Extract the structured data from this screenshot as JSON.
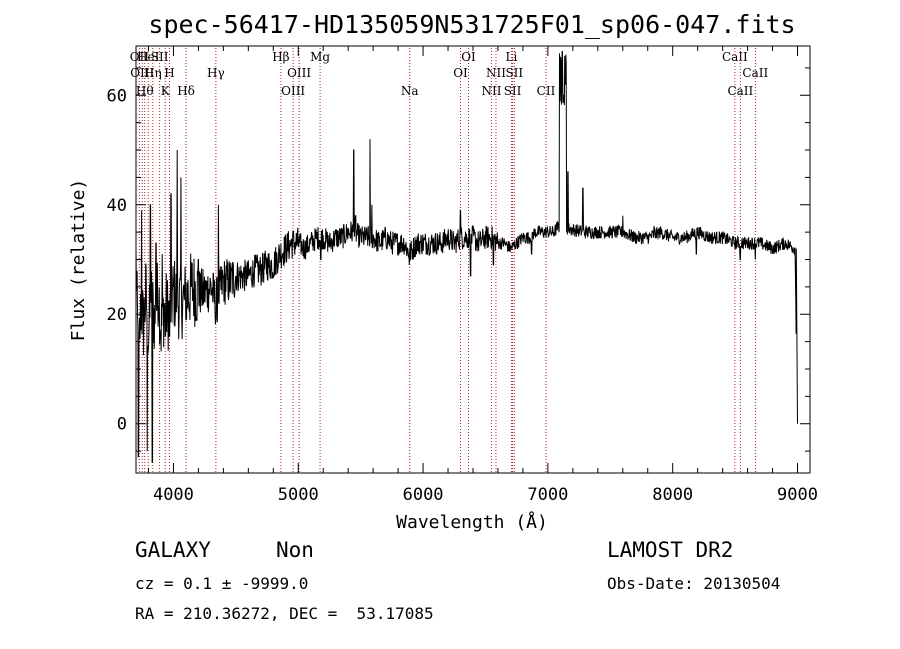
{
  "chart_data": {
    "type": "line",
    "title": "spec-56417-HD135059N531725F01_sp06-047.fits",
    "xlabel": "Wavelength (Å)",
    "ylabel": "Flux (relative)",
    "xlim": [
      3700,
      9100
    ],
    "ylim": [
      -9,
      69
    ],
    "xticks": [
      4000,
      5000,
      6000,
      7000,
      8000,
      9000
    ],
    "yticks": [
      0,
      20,
      40,
      60
    ],
    "grid": false,
    "spectrum_anchors": [
      [
        3700,
        30
      ],
      [
        3720,
        10
      ],
      [
        3740,
        22
      ],
      [
        3760,
        18
      ],
      [
        3780,
        24
      ],
      [
        3800,
        16
      ],
      [
        3820,
        23
      ],
      [
        3850,
        19
      ],
      [
        3880,
        25
      ],
      [
        3900,
        17
      ],
      [
        3930,
        22
      ],
      [
        3960,
        20
      ],
      [
        4000,
        24
      ],
      [
        4050,
        22
      ],
      [
        4100,
        23
      ],
      [
        4150,
        25
      ],
      [
        4200,
        24
      ],
      [
        4250,
        24
      ],
      [
        4300,
        25
      ],
      [
        4340,
        22
      ],
      [
        4400,
        26
      ],
      [
        4450,
        26
      ],
      [
        4500,
        27
      ],
      [
        4550,
        27
      ],
      [
        4600,
        27
      ],
      [
        4650,
        28
      ],
      [
        4700,
        28
      ],
      [
        4750,
        29
      ],
      [
        4800,
        29
      ],
      [
        4850,
        31
      ],
      [
        4900,
        32
      ],
      [
        4950,
        33
      ],
      [
        5000,
        33
      ],
      [
        5050,
        32
      ],
      [
        5100,
        33
      ],
      [
        5150,
        34
      ],
      [
        5200,
        34
      ],
      [
        5250,
        33
      ],
      [
        5300,
        34
      ],
      [
        5350,
        34
      ],
      [
        5400,
        35
      ],
      [
        5450,
        35
      ],
      [
        5500,
        34
      ],
      [
        5550,
        34
      ],
      [
        5600,
        34
      ],
      [
        5650,
        33
      ],
      [
        5700,
        34
      ],
      [
        5750,
        33
      ],
      [
        5800,
        33
      ],
      [
        5850,
        33
      ],
      [
        5890,
        31
      ],
      [
        5950,
        33
      ],
      [
        6000,
        33
      ],
      [
        6050,
        33
      ],
      [
        6100,
        33
      ],
      [
        6150,
        33
      ],
      [
        6200,
        34
      ],
      [
        6250,
        33
      ],
      [
        6300,
        34
      ],
      [
        6350,
        34
      ],
      [
        6400,
        34
      ],
      [
        6450,
        33
      ],
      [
        6500,
        34
      ],
      [
        6560,
        34
      ],
      [
        6600,
        33
      ],
      [
        6650,
        33
      ],
      [
        6700,
        32
      ],
      [
        6750,
        33
      ],
      [
        6800,
        34
      ],
      [
        6850,
        34
      ],
      [
        6900,
        35
      ],
      [
        6950,
        35
      ],
      [
        7000,
        35
      ],
      [
        7050,
        35
      ],
      [
        7080,
        36
      ],
      [
        7300,
        35
      ],
      [
        7350,
        35
      ],
      [
        7400,
        35
      ],
      [
        7500,
        35
      ],
      [
        7600,
        35
      ],
      [
        7700,
        34
      ],
      [
        7800,
        34
      ],
      [
        7900,
        35
      ],
      [
        8000,
        34
      ],
      [
        8100,
        34
      ],
      [
        8200,
        35
      ],
      [
        8300,
        34
      ],
      [
        8400,
        34
      ],
      [
        8500,
        33
      ],
      [
        8600,
        33
      ],
      [
        8700,
        33
      ],
      [
        8800,
        32
      ],
      [
        8900,
        33
      ],
      [
        8980,
        32
      ],
      [
        9000,
        0
      ]
    ],
    "spectrum_features": [
      [
        3720,
        -6
      ],
      [
        3745,
        39
      ],
      [
        3790,
        -5
      ],
      [
        3815,
        40
      ],
      [
        3830,
        -7
      ],
      [
        3860,
        33
      ],
      [
        3910,
        31
      ],
      [
        3935,
        16
      ],
      [
        3968,
        16
      ],
      [
        3980,
        42
      ],
      [
        4030,
        50
      ],
      [
        4060,
        45
      ],
      [
        4101,
        19
      ],
      [
        4200,
        30
      ],
      [
        4340,
        19
      ],
      [
        4360,
        40
      ],
      [
        5180,
        30
      ],
      [
        5445,
        50
      ],
      [
        5460,
        38
      ],
      [
        5575,
        52
      ],
      [
        5590,
        40
      ],
      [
        5890,
        29
      ],
      [
        6300,
        39
      ],
      [
        6380,
        27
      ],
      [
        6563,
        29
      ],
      [
        6870,
        31
      ],
      [
        7115,
        68
      ],
      [
        7128,
        60
      ],
      [
        7140,
        62
      ],
      [
        7160,
        46
      ],
      [
        7280,
        43
      ],
      [
        7600,
        38
      ],
      [
        7850,
        36
      ],
      [
        8190,
        31
      ],
      [
        8540,
        30
      ],
      [
        8662,
        30
      ]
    ],
    "line_markers": [
      {
        "x": 3727,
        "label": "OII",
        "row": 0
      },
      {
        "x": 3798,
        "label": "HeI",
        "row": 0
      },
      {
        "x": 3889,
        "label": "SII",
        "row": 0
      },
      {
        "x": 3750,
        "label": "OIII",
        "row": 1
      },
      {
        "x": 3835,
        "label": "Hη",
        "row": 1
      },
      {
        "x": 3968,
        "label": "H",
        "row": 1
      },
      {
        "x": 4340,
        "label": "Hγ",
        "row": 1
      },
      {
        "x": 3770,
        "label": "Hθ",
        "row": 2
      },
      {
        "x": 3934,
        "label": "K",
        "row": 2
      },
      {
        "x": 4101,
        "label": "Hδ",
        "row": 2
      },
      {
        "x": 4861,
        "label": "Hβ",
        "row": 0
      },
      {
        "x": 5175,
        "label": "Mg",
        "row": 0
      },
      {
        "x": 5007,
        "label": "OIII",
        "row": 1
      },
      {
        "x": 4959,
        "label": "OIII",
        "row": 2
      },
      {
        "x": 5893,
        "label": "Na",
        "row": 2
      },
      {
        "x": 6364,
        "label": "OI",
        "row": 0
      },
      {
        "x": 6300,
        "label": "OI",
        "row": 1
      },
      {
        "x": 6708,
        "label": "Li",
        "row": 0
      },
      {
        "x": 6584,
        "label": "NII",
        "row": 1
      },
      {
        "x": 6731,
        "label": "SII",
        "row": 1
      },
      {
        "x": 6548,
        "label": "NII",
        "row": 2
      },
      {
        "x": 6717,
        "label": "SII",
        "row": 2
      },
      {
        "x": 6985,
        "label": "CII",
        "row": 2
      },
      {
        "x": 8498,
        "label": "CaII",
        "row": 0
      },
      {
        "x": 8662,
        "label": "CaII",
        "row": 1
      },
      {
        "x": 8542,
        "label": "CaII",
        "row": 2
      }
    ]
  },
  "info": {
    "class": "GALAXY",
    "subclass": "Non",
    "cz": "cz = 0.1 ± -9999.0",
    "radec": "RA = 210.36272, DEC =  53.17085",
    "survey": "LAMOST DR2",
    "obsdate": "Obs-Date: 20130504"
  },
  "colors": {
    "axes": "#000000",
    "spectrum": "#000000",
    "line_markers": "#b22222"
  }
}
